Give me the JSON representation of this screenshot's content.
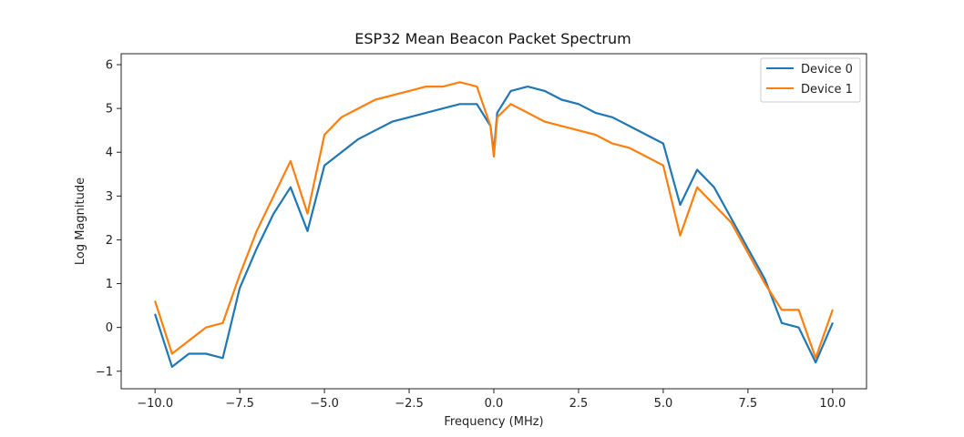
{
  "chart_data": {
    "type": "line",
    "title": "ESP32 Mean Beacon Packet Spectrum",
    "xlabel": "Frequency (MHz)",
    "ylabel": "Log Magnitude",
    "xlim": [
      -11,
      11
    ],
    "ylim": [
      -1.4,
      6.25
    ],
    "xticks": [
      -10.0,
      -7.5,
      -5.0,
      -2.5,
      0.0,
      2.5,
      5.0,
      7.5,
      10.0
    ],
    "xtick_labels": [
      "−10.0",
      "−7.5",
      "−5.0",
      "−2.5",
      "0.0",
      "2.5",
      "5.0",
      "7.5",
      "10.0"
    ],
    "yticks": [
      -1,
      0,
      1,
      2,
      3,
      4,
      5,
      6
    ],
    "ytick_labels": [
      "−1",
      "0",
      "1",
      "2",
      "3",
      "4",
      "5",
      "6"
    ],
    "legend_position": "top-right",
    "grid": false,
    "x": [
      -10,
      -9.5,
      -9,
      -8.5,
      -8,
      -7.5,
      -7,
      -6.5,
      -6,
      -5.5,
      -5,
      -4.5,
      -4,
      -3.5,
      -3,
      -2.5,
      -2,
      -1.5,
      -1,
      -0.5,
      -0.1,
      0,
      0.1,
      0.5,
      1,
      1.5,
      2,
      2.5,
      3,
      3.5,
      4,
      4.5,
      5,
      5.5,
      6,
      6.5,
      7,
      7.5,
      8,
      8.5,
      9,
      9.5,
      10
    ],
    "series": [
      {
        "name": "Device 0",
        "color": "#1f77b4",
        "values": [
          0.3,
          -0.9,
          -0.6,
          -0.6,
          -0.7,
          0.9,
          1.8,
          2.6,
          3.2,
          2.2,
          3.7,
          4.0,
          4.3,
          4.5,
          4.7,
          4.8,
          4.9,
          5.0,
          5.1,
          5.1,
          4.6,
          4.0,
          4.9,
          5.4,
          5.5,
          5.4,
          5.2,
          5.1,
          4.9,
          4.8,
          4.6,
          4.4,
          4.2,
          2.8,
          3.6,
          3.2,
          2.5,
          1.8,
          1.1,
          0.1,
          0.0,
          -0.8,
          0.1
        ]
      },
      {
        "name": "Device 1",
        "color": "#ff7f0e",
        "values": [
          0.6,
          -0.6,
          -0.3,
          0.0,
          0.1,
          1.2,
          2.2,
          3.0,
          3.8,
          2.6,
          4.4,
          4.8,
          5.0,
          5.2,
          5.3,
          5.4,
          5.5,
          5.5,
          5.6,
          5.5,
          4.6,
          3.9,
          4.8,
          5.1,
          4.9,
          4.7,
          4.6,
          4.5,
          4.4,
          4.2,
          4.1,
          3.9,
          3.7,
          2.1,
          3.2,
          2.8,
          2.4,
          1.7,
          1.0,
          0.4,
          0.4,
          -0.7,
          0.4
        ]
      }
    ]
  }
}
